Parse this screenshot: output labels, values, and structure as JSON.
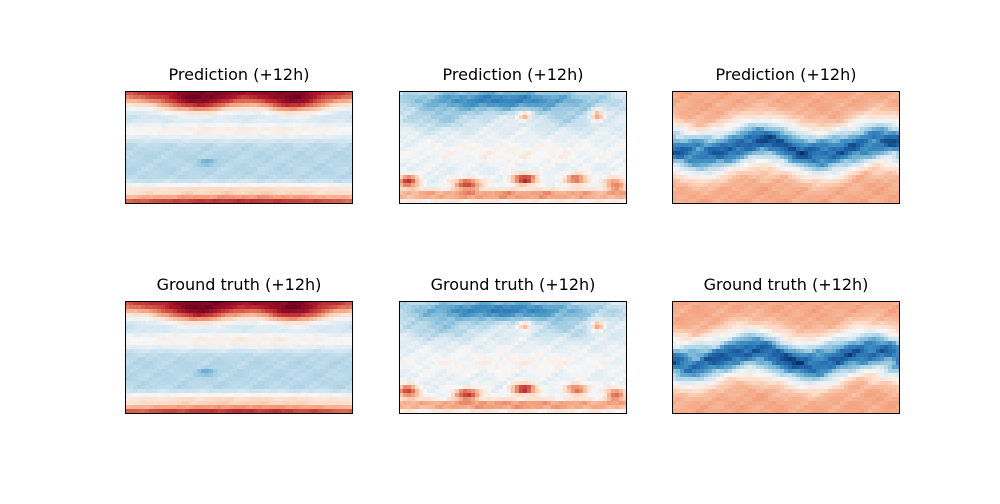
{
  "figure": {
    "background": "#ffffff",
    "colormap": "RdBu_r",
    "colormap_stops": [
      "#053061",
      "#2166ac",
      "#4393c3",
      "#92c5de",
      "#d1e5f0",
      "#f7f7f7",
      "#fddbc7",
      "#f4a582",
      "#d6604d",
      "#b2182b",
      "#67001f"
    ]
  },
  "chart_data": [
    {
      "type": "heatmap",
      "title": "Prediction (+12h)",
      "row": 0,
      "col": 0,
      "field": "temperature-like",
      "axis_ticks": "none",
      "frame": true
    },
    {
      "type": "heatmap",
      "title": "Prediction (+12h)",
      "row": 0,
      "col": 1,
      "field": "pressure-like",
      "axis_ticks": "none",
      "frame": true
    },
    {
      "type": "heatmap",
      "title": "Prediction (+12h)",
      "row": 0,
      "col": 2,
      "field": "humidity-like",
      "axis_ticks": "none",
      "frame": true
    },
    {
      "type": "heatmap",
      "title": "Ground truth (+12h)",
      "row": 1,
      "col": 0,
      "field": "temperature-like",
      "axis_ticks": "none",
      "frame": true
    },
    {
      "type": "heatmap",
      "title": "Ground truth (+12h)",
      "row": 1,
      "col": 1,
      "field": "pressure-like",
      "axis_ticks": "none",
      "frame": true
    },
    {
      "type": "heatmap",
      "title": "Ground truth (+12h)",
      "row": 1,
      "col": 2,
      "field": "humidity-like",
      "axis_ticks": "none",
      "frame": true
    }
  ]
}
